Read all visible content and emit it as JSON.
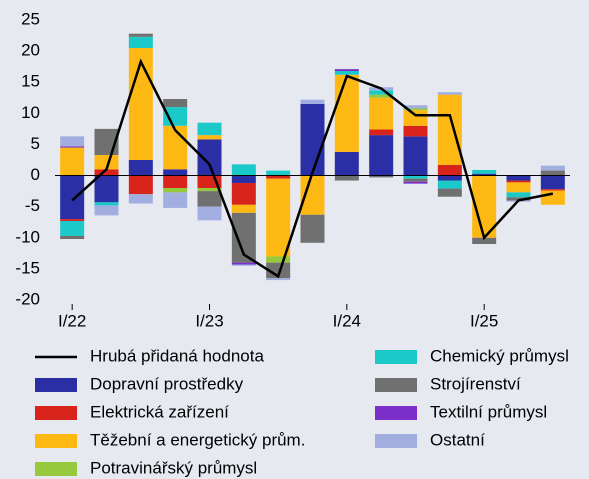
{
  "chart_data": {
    "type": "bar",
    "categories": [
      "I/22",
      null,
      null,
      null,
      "I/23",
      null,
      null,
      null,
      "I/24",
      null,
      null,
      null,
      "I/25",
      null,
      null
    ],
    "series": [
      {
        "name": "Hrubá přidaná hodnota",
        "type": "line",
        "color": "#000000",
        "values": [
          -4,
          1,
          18.3,
          7.3,
          1.8,
          -12.7,
          -16.2,
          0.5,
          16,
          14,
          9.7,
          9.7,
          -10,
          -4,
          -2.9
        ]
      },
      {
        "name": "Dopravní prostředky",
        "color": "#2a2fa5",
        "values": [
          -7,
          -4.3,
          2.5,
          1,
          5.8,
          -1.2,
          0,
          11.5,
          3.8,
          6.5,
          6.3,
          -0.8,
          0.3,
          -0.8,
          -2.2
        ]
      },
      {
        "name": "Elektrická zařízení",
        "color": "#d9241c",
        "values": [
          -0.3,
          1,
          -3,
          -2,
          -2,
          -3.5,
          -0.5,
          0,
          0,
          0.9,
          1.7,
          1.7,
          0,
          -0.3,
          -0.2
        ]
      },
      {
        "name": "Těžební a energetický prům.",
        "color": "#fdb813",
        "values": [
          4.5,
          2.3,
          18,
          7,
          0.7,
          -1.3,
          -12.5,
          -6.3,
          12.4,
          5.1,
          2.5,
          11.3,
          -10,
          -1.6,
          -2.3
        ]
      },
      {
        "name": "Potravinářský průmysl",
        "color": "#96c93d",
        "values": [
          0,
          0,
          0,
          -0.7,
          -0.5,
          0,
          -1,
          0,
          0,
          0.5,
          0.3,
          0,
          0,
          0,
          0
        ]
      },
      {
        "name": "Chemický průmysl",
        "color": "#1cc9c9",
        "values": [
          -2.4,
          -0.5,
          1.8,
          3,
          2,
          1.8,
          0.8,
          0,
          0.6,
          0.7,
          -0.5,
          -1.3,
          0.6,
          -0.8,
          0
        ]
      },
      {
        "name": "Strojírenství",
        "color": "#707070",
        "values": [
          -0.5,
          4.2,
          0.5,
          1.3,
          -2.5,
          -8,
          -2.5,
          -4.5,
          -0.8,
          -0.3,
          -0.5,
          -1.3,
          -1,
          -0.5,
          0.8
        ]
      },
      {
        "name": "Textilní průmysl",
        "color": "#7b2fc9",
        "values": [
          0.2,
          0,
          0,
          0,
          0,
          -0.3,
          0,
          0,
          0.3,
          0,
          -0.3,
          0,
          0,
          0,
          0
        ]
      },
      {
        "name": "Ostatní",
        "color": "#a3aee0",
        "values": [
          1.6,
          -1.6,
          -1.5,
          -2.5,
          -2.2,
          -0.2,
          -0.3,
          0.7,
          0,
          0.5,
          0.5,
          0.4,
          0,
          -0.2,
          0.8
        ]
      }
    ],
    "ylim": [
      -20,
      25
    ],
    "yticks": [
      -20,
      -15,
      -10,
      -5,
      0,
      5,
      10,
      15,
      20,
      25
    ]
  }
}
